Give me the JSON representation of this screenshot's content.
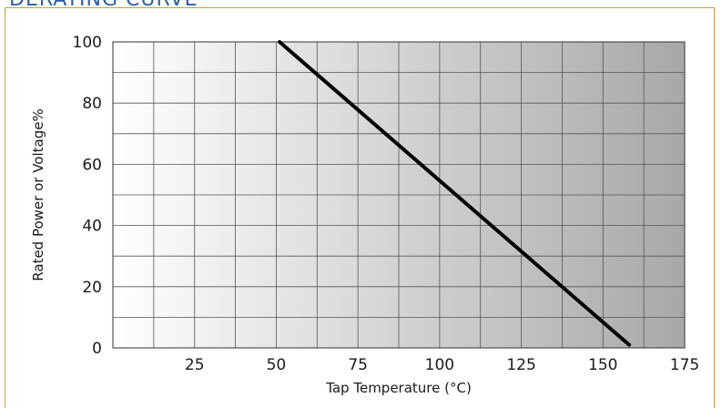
{
  "header": {
    "title": "DERATING CURVE"
  },
  "chart_data": {
    "type": "line",
    "title": "",
    "xlabel": "Tap Temperature (°C)",
    "ylabel": "Rated Power or Voltage%",
    "xlim": [
      0,
      175
    ],
    "ylim": [
      0,
      100
    ],
    "xticks": [
      25,
      50,
      75,
      100,
      125,
      150,
      175
    ],
    "yticks": [
      0,
      20,
      40,
      60,
      80,
      100
    ],
    "grid": true,
    "series": [
      {
        "x": [
          51,
          158
        ],
        "y": [
          100,
          1
        ]
      }
    ],
    "colors": {
      "line": "#000000",
      "grid": "#555555",
      "accent": "#2f5fa6",
      "frame": "#d49a3e"
    }
  }
}
